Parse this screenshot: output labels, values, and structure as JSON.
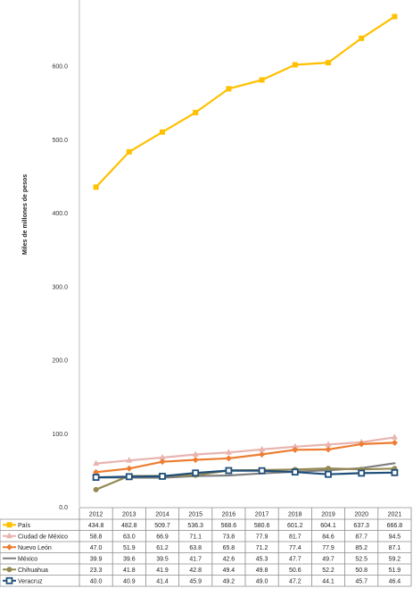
{
  "chart_data": {
    "type": "line",
    "title": "",
    "xlabel": "",
    "ylabel": "Miles de millones de pesos",
    "ylim": [
      0,
      700
    ],
    "yticks": [
      "0.0",
      "100.0",
      "200.0",
      "300.0",
      "400.0",
      "500.0",
      "600.0"
    ],
    "grid": false,
    "legend": "data table below plot",
    "categories": [
      "2012",
      "2013",
      "2014",
      "2015",
      "2016",
      "2017",
      "2018",
      "2019",
      "2020",
      "2021"
    ],
    "series": [
      {
        "name": "País",
        "color": "#FFC000",
        "marker": "square",
        "values": [
          434.8,
          482.8,
          509.7,
          536.3,
          568.6,
          580.6,
          601.2,
          604.1,
          637.3,
          666.8
        ]
      },
      {
        "name": "Ciudad de México",
        "color": "#E8B4B0",
        "marker": "triangle",
        "values": [
          58.8,
          63.0,
          66.9,
          71.1,
          73.8,
          77.9,
          81.7,
          84.6,
          87.7,
          94.5
        ]
      },
      {
        "name": "Nuevo León",
        "color": "#ED7D31",
        "marker": "diamond",
        "values": [
          47.0,
          51.9,
          61.2,
          63.8,
          65.8,
          71.2,
          77.4,
          77.9,
          85.2,
          87.1
        ]
      },
      {
        "name": "México",
        "color": "#7F7F7F",
        "marker": "none",
        "values": [
          39.9,
          39.6,
          39.5,
          41.7,
          42.6,
          45.3,
          47.7,
          49.7,
          52.5,
          59.2
        ]
      },
      {
        "name": "Chihuahua",
        "color": "#948A54",
        "marker": "circle",
        "values": [
          23.3,
          41.8,
          41.9,
          42.8,
          49.4,
          49.8,
          50.6,
          52.2,
          50.8,
          51.9
        ]
      },
      {
        "name": "Veracruz",
        "color": "#1F4E79",
        "marker": "square-open",
        "values": [
          40.0,
          40.9,
          41.4,
          45.9,
          49.2,
          49.0,
          47.2,
          44.1,
          45.7,
          46.4
        ]
      }
    ]
  }
}
